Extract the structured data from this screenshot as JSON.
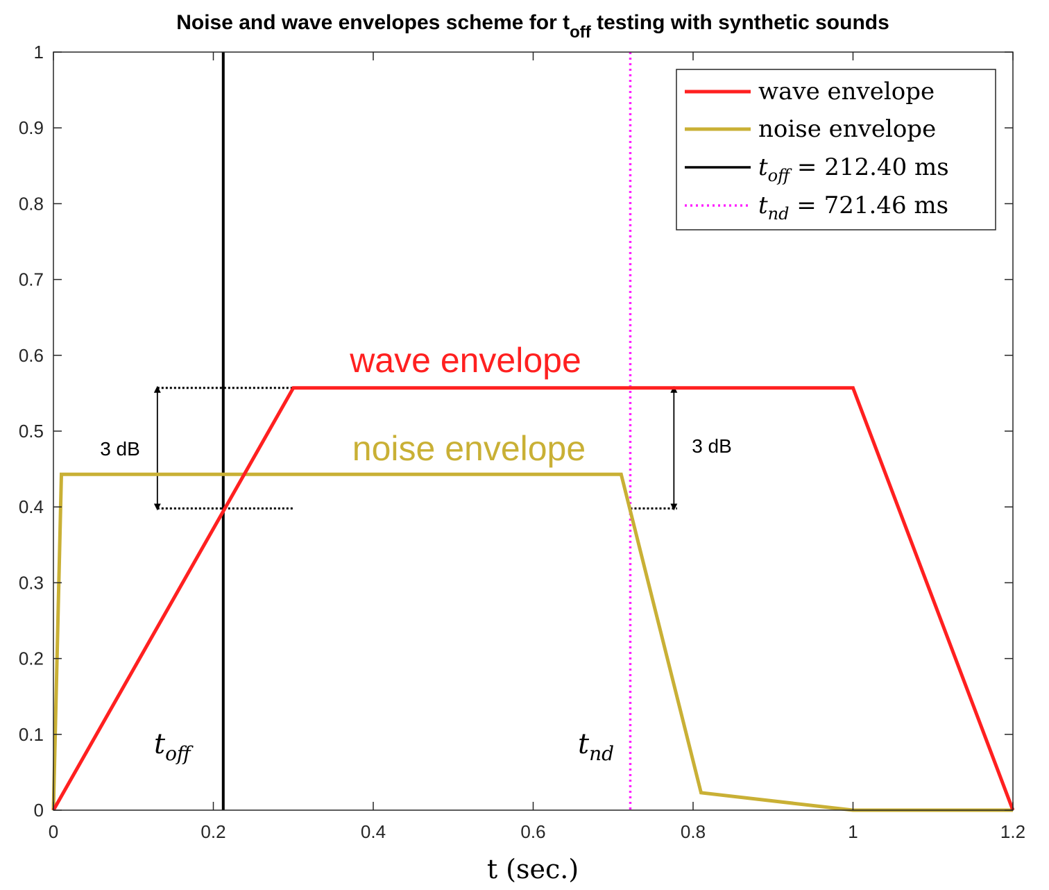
{
  "chart_data": {
    "type": "line",
    "title": {
      "before": "Noise and wave envelopes scheme for t",
      "sub": "off",
      "after": " testing with synthetic sounds"
    },
    "xlabel": "t (sec.)",
    "ylabel": "",
    "xlim": [
      0,
      1.2
    ],
    "ylim": [
      0,
      1
    ],
    "x_ticks": [
      "0",
      "0.2",
      "0.4",
      "0.6",
      "0.8",
      "1",
      "1.2"
    ],
    "y_ticks": [
      "0",
      "0.1",
      "0.2",
      "0.3",
      "0.4",
      "0.5",
      "0.6",
      "0.7",
      "0.8",
      "0.9",
      "1"
    ],
    "grid": false,
    "legend_position": "top-right",
    "series": [
      {
        "name": "wave envelope",
        "color": "#ff2020",
        "x": [
          0,
          0.3,
          1.0,
          1.2
        ],
        "y": [
          0,
          0.557,
          0.557,
          0
        ]
      },
      {
        "name": "noise envelope",
        "color": "#c9b035",
        "x": [
          0,
          0.01,
          0.71,
          0.81,
          1.0,
          1.2
        ],
        "y": [
          0,
          0.443,
          0.443,
          0.023,
          0,
          0
        ]
      }
    ],
    "vlines": [
      {
        "legend": "t_off = 212.40 ms",
        "x": 0.2124,
        "color": "#000000",
        "style": "solid"
      },
      {
        "legend": "t_nd = 721.46 ms",
        "x": 0.72146,
        "color": "#ff22ff",
        "style": "dotted"
      }
    ],
    "legend_entries": [
      {
        "type": "series",
        "text": "wave envelope",
        "color": "#ff2020"
      },
      {
        "type": "series",
        "text": "noise envelope",
        "color": "#c9b035"
      },
      {
        "type": "vline",
        "sym": "t",
        "sub": "off",
        "rest": " = 212.40 ms",
        "color": "#000000"
      },
      {
        "type": "vline",
        "sym": "t",
        "sub": "nd",
        "rest": " = 721.46 ms",
        "color": "#ff22ff"
      }
    ],
    "annotations": {
      "wave_label": "wave envelope",
      "noise_label": "noise envelope",
      "db_left": "3 dB",
      "db_right": "3 dB",
      "toff_label": {
        "sym": "t",
        "sub": "off"
      },
      "tnd_label": {
        "sym": "t",
        "sub": "nd"
      }
    },
    "db_brackets": {
      "top_level": 0.557,
      "bottom_level": 0.398,
      "left": {
        "x1": 0.13,
        "x2": 0.3,
        "arrow_x": 0.13
      },
      "right": {
        "x1": 0.72146,
        "x2": 0.78,
        "arrow_x": 0.776
      }
    }
  }
}
